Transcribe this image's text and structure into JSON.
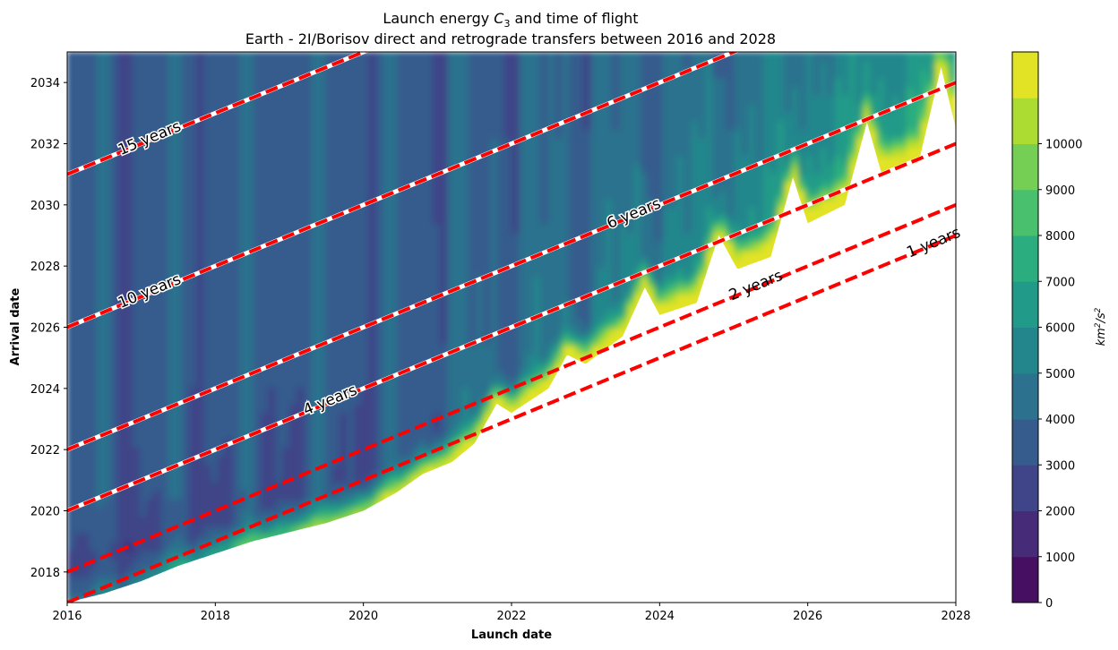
{
  "chart_data": {
    "type": "heatmap",
    "title": "Launch energy C3 and time of flight",
    "title_prefix": "Launch energy ",
    "title_symbol": "C",
    "title_subscript": "3",
    "title_suffix": " and time of flight",
    "subtitle": "Earth - 2I/Borisov direct and retrograde transfers between 2016 and 2028",
    "xlabel": "Launch date",
    "ylabel": "Arrival date",
    "xlim": [
      2016,
      2028
    ],
    "ylim": [
      2017,
      2035
    ],
    "x_ticks": [
      "2016",
      "2018",
      "2020",
      "2022",
      "2024",
      "2026",
      "2028"
    ],
    "y_ticks": [
      "2018",
      "2020",
      "2022",
      "2024",
      "2026",
      "2028",
      "2030",
      "2032",
      "2034"
    ],
    "colorbar": {
      "label": "km²/s²",
      "label_base": "km",
      "label_exp1": "2",
      "label_mid": "/s",
      "label_exp2": "2",
      "min": 0,
      "max": 12000,
      "ticks": [
        "0",
        "1000",
        "2000",
        "3000",
        "4000",
        "5000",
        "6000",
        "7000",
        "8000",
        "9000",
        "10000"
      ],
      "levels": [
        0,
        1000,
        2000,
        3000,
        4000,
        5000,
        6000,
        7000,
        8000,
        9000,
        10000,
        11000,
        12000
      ],
      "colormap": "viridis"
    },
    "tof_lines": [
      {
        "label": "1 years",
        "years": 1,
        "style": "red-dashed"
      },
      {
        "label": "2 years",
        "years": 2,
        "style": "red-dashed"
      },
      {
        "label": "4 years",
        "years": 4,
        "style": "white-red-dashed"
      },
      {
        "label": "6 years",
        "years": 6,
        "style": "white-red-dashed"
      },
      {
        "label": "10 years",
        "years": 10,
        "style": "white-red-dashed"
      },
      {
        "label": "15 years",
        "years": 15,
        "style": "white-red-dashed"
      }
    ],
    "feasible_region": "arrival date above the minimum time-of-flight boundary; white (no data) below",
    "colors": {
      "line": "#ff0000",
      "line_white": "#ffffff",
      "colormap_low": "#440154",
      "colormap_high": "#e7e419"
    }
  }
}
